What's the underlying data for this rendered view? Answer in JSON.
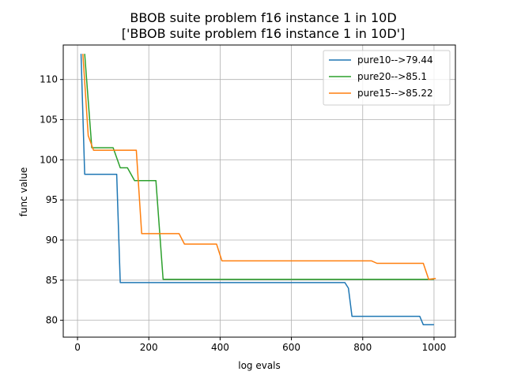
{
  "chart_data": {
    "type": "line",
    "title": "BBOB suite problem f16 instance 1 in 10D",
    "subtitle": "['BBOB suite problem f16 instance 1 in 10D']",
    "xlabel": "log evals",
    "ylabel": "func value",
    "xlim": [
      -40,
      1060
    ],
    "ylim": [
      77.9,
      114.3
    ],
    "xticks": [
      0,
      200,
      400,
      600,
      800,
      1000
    ],
    "yticks": [
      80,
      85,
      90,
      95,
      100,
      105,
      110
    ],
    "grid": true,
    "legend_position": "top-right",
    "series": [
      {
        "name": "pure10-->79.44",
        "color": "#1f77b4",
        "x": [
          10,
          20,
          110,
          120,
          750,
          760,
          770,
          960,
          970,
          1000
        ],
        "y": [
          113.2,
          98.2,
          98.2,
          84.7,
          84.7,
          84.0,
          80.5,
          80.5,
          79.44,
          79.44
        ]
      },
      {
        "name": "pure20-->85.1",
        "color": "#2ca02c",
        "x": [
          20,
          40,
          100,
          120,
          140,
          160,
          220,
          240,
          1000
        ],
        "y": [
          113.2,
          101.5,
          101.5,
          99.0,
          99.0,
          97.4,
          97.4,
          85.1,
          85.1
        ]
      },
      {
        "name": "pure15-->85.22",
        "color": "#ff7f0e",
        "x": [
          15,
          30,
          45,
          165,
          180,
          285,
          300,
          390,
          405,
          825,
          840,
          970,
          985,
          1005
        ],
        "y": [
          113.2,
          103.0,
          101.2,
          101.2,
          90.8,
          90.8,
          89.5,
          89.5,
          87.4,
          87.4,
          87.1,
          87.1,
          85.1,
          85.22
        ]
      }
    ]
  }
}
